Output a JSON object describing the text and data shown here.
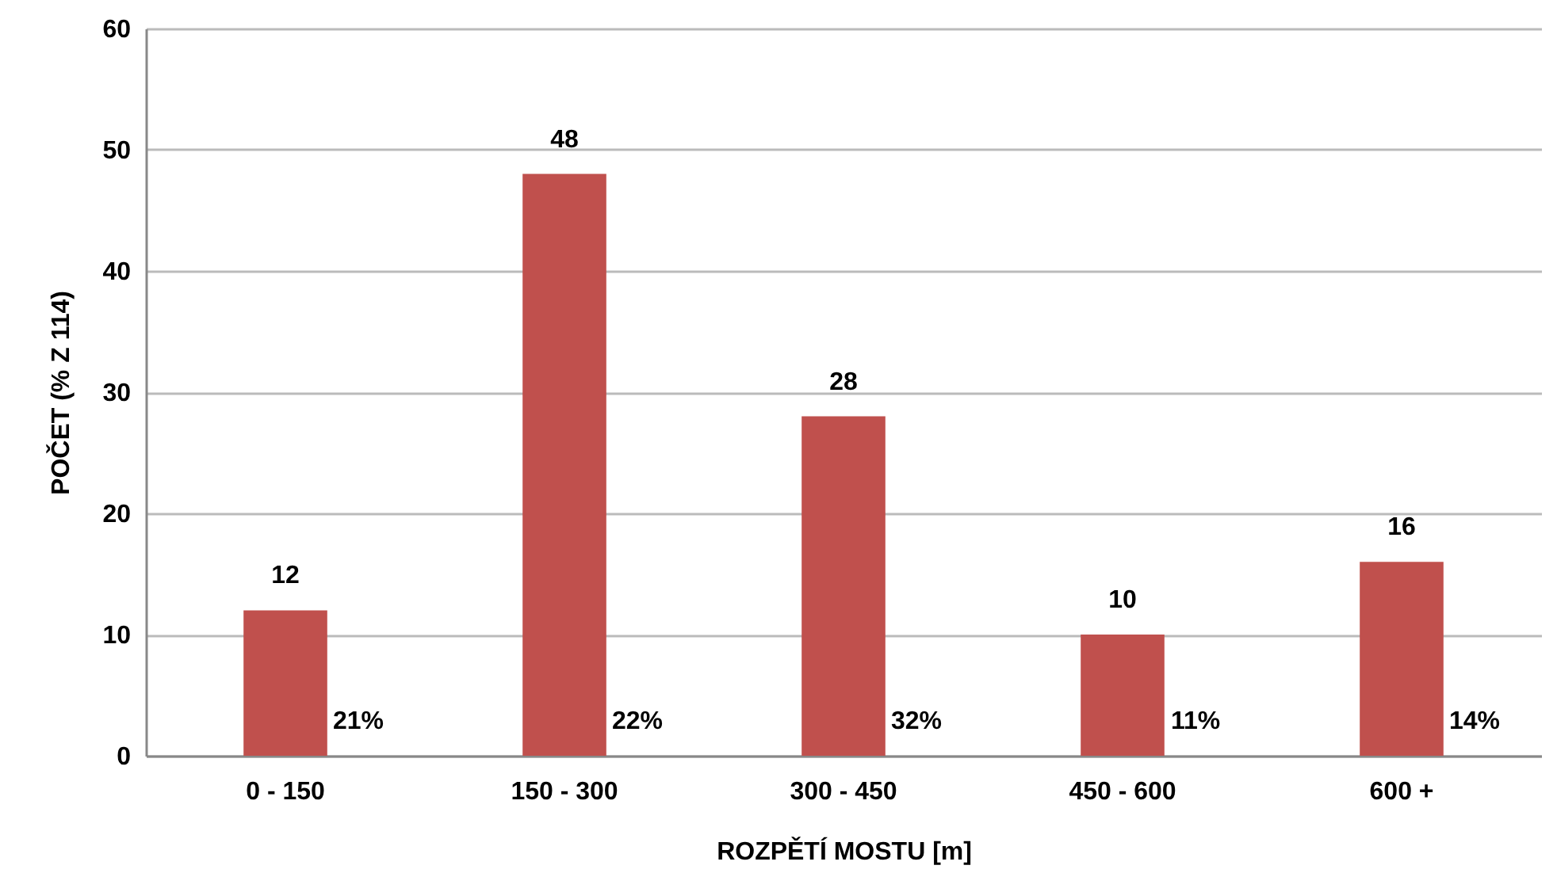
{
  "chart_data": {
    "type": "bar",
    "xlabel": "ROZPĚTÍ MOSTU [m]",
    "ylabel": "POČET (% Z 114)",
    "categories": [
      "0 - 150",
      "150 - 300",
      "300 - 450",
      "450 - 600",
      "600 +"
    ],
    "values": [
      12,
      48,
      28,
      10,
      16
    ],
    "color": "#c0504d",
    "data_labels": true,
    "ylim": [
      0,
      60
    ],
    "yticks": [
      0,
      10,
      20,
      30,
      40,
      50,
      60
    ],
    "grid": "y",
    "annotations": [
      "21%",
      "22%",
      "32%",
      "11%",
      "14%"
    ]
  }
}
